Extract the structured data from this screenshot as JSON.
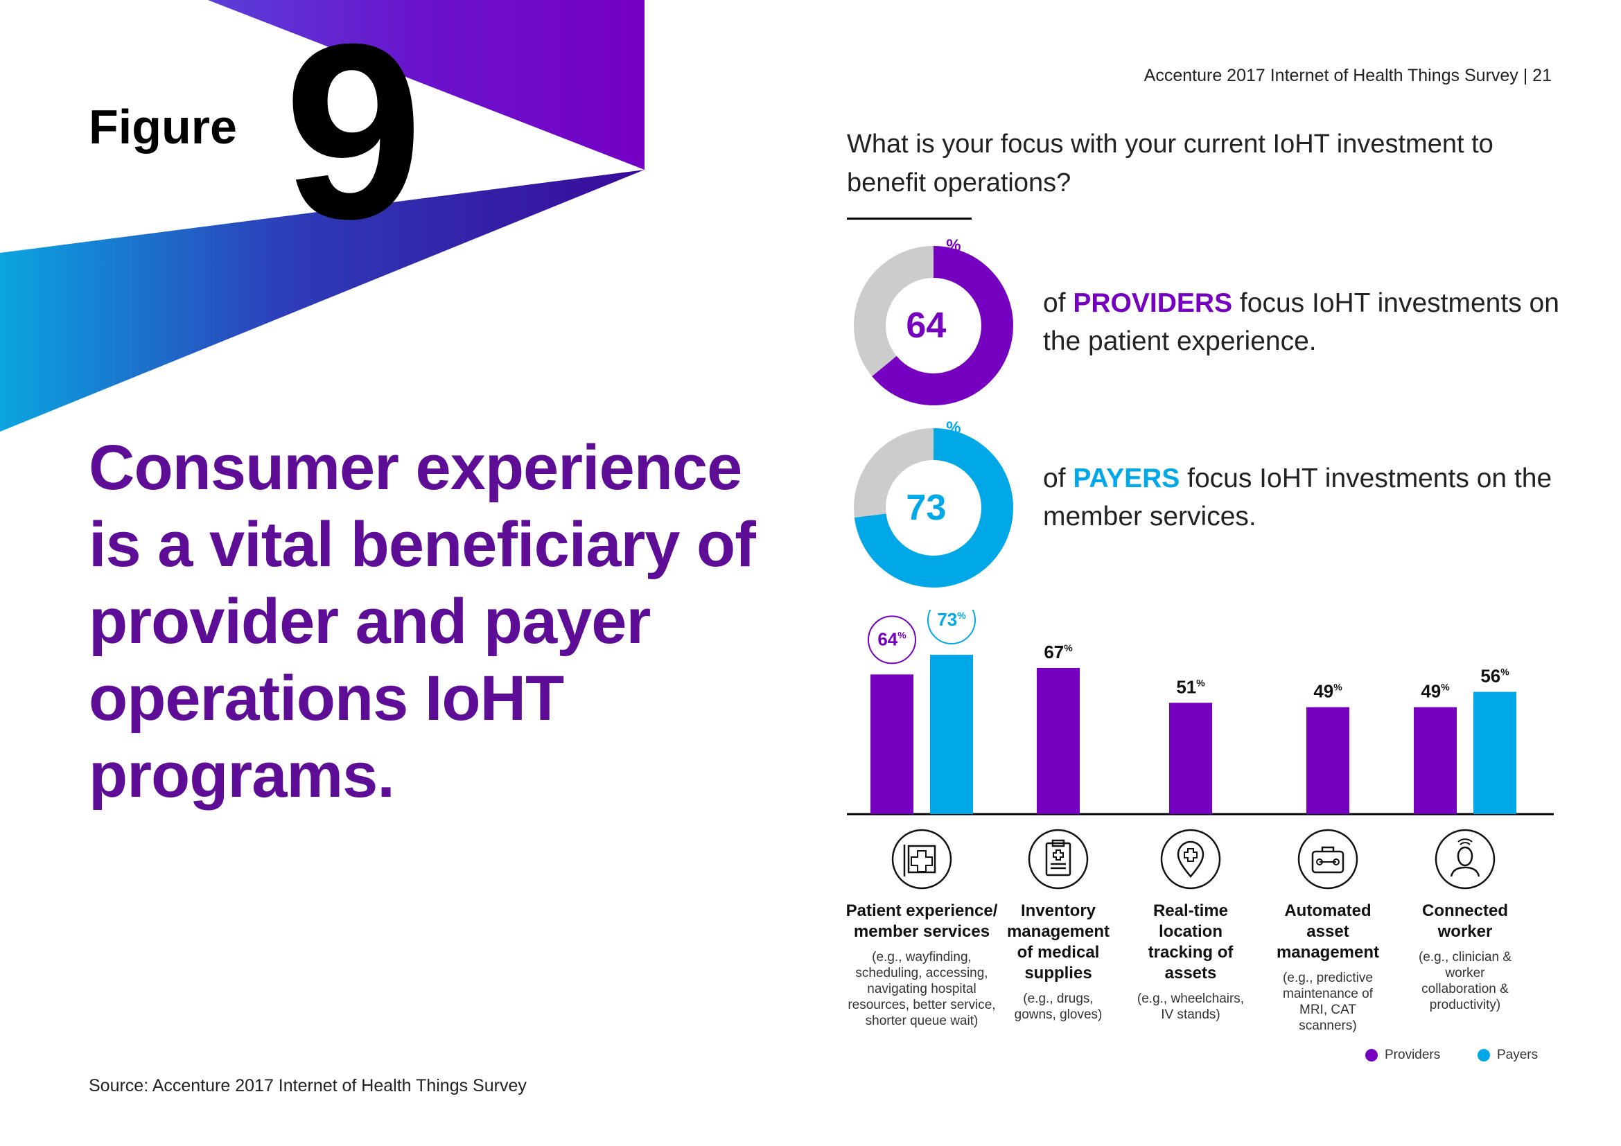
{
  "header": {
    "figure_word": "Figure",
    "figure_number": "9",
    "running_title": "Accenture 2017 Internet of Health Things Survey | 21"
  },
  "headline": "Consumer experience is a vital beneficiary of provider and payer operations IoHT programs.",
  "question": "What is your focus with your current IoHT investment to benefit operations?",
  "stats": [
    {
      "value": 64,
      "label": "64",
      "unit": "%",
      "pre": "of ",
      "group": "PROVIDERS",
      "post": " focus IoHT investments on the patient experience.",
      "color": "#7500c0"
    },
    {
      "value": 73,
      "label": "73",
      "unit": "%",
      "pre": "of ",
      "group": "PAYERS",
      "post": " focus IoHT investments on the member services.",
      "color": "#00a8e8"
    }
  ],
  "colors": {
    "providers": "#7500c0",
    "payers": "#00a8e8",
    "remainder": "#cccccc",
    "headline": "#5d0d96"
  },
  "chart_data": {
    "type": "bar",
    "categories": [
      "Patient experience/ member services",
      "Inventory management of medical supplies",
      "Real-time location tracking of assets",
      "Automated asset management",
      "Connected worker"
    ],
    "category_notes": [
      "(e.g., wayfinding, scheduling, accessing, navigating hospital resources, better service, shorter queue wait)",
      "(e.g., drugs, gowns, gloves)",
      "(e.g., wheelchairs, IV stands)",
      "(e.g., predictive maintenance of MRI, CAT scanners)",
      "(e.g., clinician & worker collaboration & productivity)"
    ],
    "category_icons": [
      "hospital-sign-icon",
      "clipboard-icon",
      "location-pin-icon",
      "toolbox-icon",
      "worker-headset-icon"
    ],
    "series": [
      {
        "name": "Providers",
        "values": [
          64,
          67,
          51,
          49,
          49
        ]
      },
      {
        "name": "Payers",
        "values": [
          73,
          null,
          null,
          null,
          56
        ]
      }
    ],
    "unit": "%",
    "ylim": [
      0,
      100
    ],
    "grid": false,
    "legend": "bottom-right"
  },
  "source": "Source: Accenture 2017 Internet of Health Things Survey"
}
